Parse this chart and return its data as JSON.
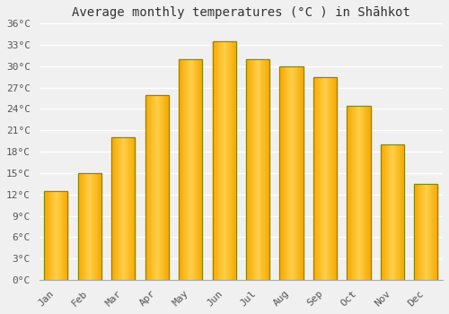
{
  "title": "Average monthly temperatures (°C ) in Shāhkot",
  "months": [
    "Jan",
    "Feb",
    "Mar",
    "Apr",
    "May",
    "Jun",
    "Jul",
    "Aug",
    "Sep",
    "Oct",
    "Nov",
    "Dec"
  ],
  "temperatures": [
    12.5,
    15.0,
    20.0,
    26.0,
    31.0,
    33.5,
    31.0,
    30.0,
    28.5,
    24.5,
    19.0,
    13.5
  ],
  "bar_color_outer": "#F5A800",
  "bar_color_inner": "#FFD04A",
  "bar_edge_color": "#888800",
  "ylim": [
    0,
    36
  ],
  "yticks": [
    0,
    3,
    6,
    9,
    12,
    15,
    18,
    21,
    24,
    27,
    30,
    33,
    36
  ],
  "ytick_labels": [
    "0°C",
    "3°C",
    "6°C",
    "9°C",
    "12°C",
    "15°C",
    "18°C",
    "21°C",
    "24°C",
    "27°C",
    "30°C",
    "33°C",
    "36°C"
  ],
  "background_color": "#f0f0f0",
  "plot_bg_color": "#f0f0f0",
  "grid_color": "#ffffff",
  "title_fontsize": 10,
  "tick_fontsize": 8,
  "tick_color": "#555555",
  "font_family": "monospace"
}
